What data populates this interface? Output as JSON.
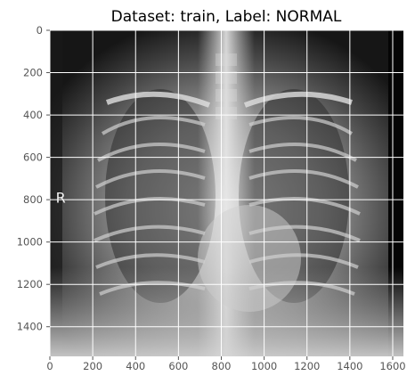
{
  "chart_data": {
    "type": "image",
    "title": "Dataset: train, Label: NORMAL",
    "xlabel": "",
    "ylabel": "",
    "xlim": [
      0,
      1650
    ],
    "ylim": [
      1540,
      0
    ],
    "x_ticks": [
      0,
      200,
      400,
      600,
      800,
      1000,
      1200,
      1400,
      1600
    ],
    "y_ticks": [
      0,
      200,
      400,
      600,
      800,
      1000,
      1200,
      1400
    ],
    "grid": true,
    "image_content": "grayscale frontal chest X-ray",
    "image_marker": {
      "text": "R",
      "x": 40,
      "y": 780
    },
    "colors": {
      "axes_background": "#e5e5e5",
      "grid": "#ffffff",
      "tick_label": "#555555",
      "title": "#000000"
    }
  }
}
